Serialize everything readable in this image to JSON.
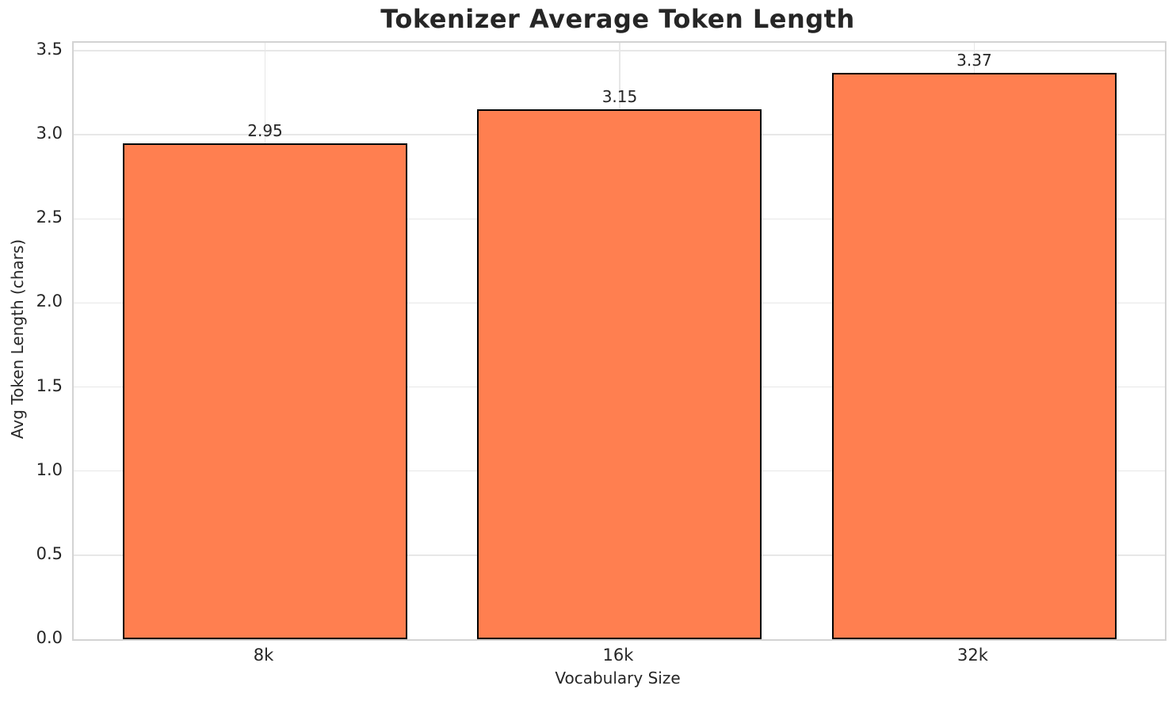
{
  "chart_data": {
    "type": "bar",
    "title": "Tokenizer Average Token Length",
    "xlabel": "Vocabulary Size",
    "ylabel": "Avg Token Length (chars)",
    "categories": [
      "8k",
      "16k",
      "32k"
    ],
    "values": [
      2.95,
      3.15,
      3.37
    ],
    "bar_value_labels": [
      "2.95",
      "3.15",
      "3.37"
    ],
    "ylim": [
      0.0,
      3.5
    ],
    "yticks": [
      0.0,
      0.5,
      1.0,
      1.5,
      2.0,
      2.5,
      3.0,
      3.5
    ],
    "ytick_labels": [
      "0.0",
      "0.5",
      "1.0",
      "1.5",
      "2.0",
      "2.5",
      "3.0",
      "3.5"
    ],
    "grid": true,
    "legend_position": "none",
    "colors": {
      "bar_fill": "#FF7F50",
      "bar_edge": "#000000",
      "grid_line": "#e7e7e7",
      "spine": "#d3d3d3",
      "text": "#262626",
      "background": "#ffffff"
    }
  }
}
